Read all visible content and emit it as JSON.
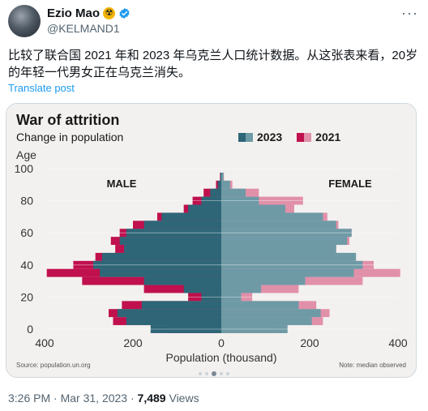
{
  "post": {
    "author_name": "Ezio Mao",
    "status_emoji": "☢",
    "handle": "@KELMAND1",
    "more_label": "···",
    "text": "比较了联合国 2021 年和 2023 年乌克兰人口统计数据。从这张表来看，20岁的年轻一代男女正在乌克兰消失。",
    "translate_label": "Translate post",
    "time": "3:26 PM",
    "sep": "·",
    "date": "Mar 31, 2023",
    "views_count": "7,489",
    "views_label": "Views"
  },
  "media": {
    "title": "War of attrition",
    "subtitle": "Change in population",
    "legend_2023": "2023",
    "legend_2021": "2021",
    "source": "Source: population.un.org",
    "note": "Note: median observed"
  },
  "colors": {
    "c2023": "#2e6677",
    "c2023_female": "#6e9aa6",
    "c2021": "#c0104d",
    "c2021_female": "#e190a9",
    "accent": "#1d9bf0",
    "verified": "#1d9bf0"
  },
  "chart_data": {
    "type": "bar",
    "orientation": "horizontal-pyramid",
    "title": "War of attrition",
    "subtitle": "Change in population",
    "xlabel": "Population (thousand)",
    "ylabel": "Age",
    "left_label": "MALE",
    "right_label": "FEMALE",
    "xlim": [
      -400,
      400
    ],
    "ylim": [
      0,
      100
    ],
    "x_ticks": [
      400,
      200,
      0,
      200,
      400
    ],
    "y_ticks": [
      0,
      20,
      40,
      60,
      80,
      100
    ],
    "ages": [
      0,
      5,
      10,
      15,
      20,
      25,
      30,
      35,
      40,
      45,
      50,
      55,
      60,
      65,
      70,
      75,
      80,
      85,
      90,
      95,
      100
    ],
    "series": [
      {
        "name": "2023",
        "male": [
          -160,
          -215,
          -235,
          -180,
          -45,
          -85,
          -175,
          -275,
          -290,
          -270,
          -220,
          -230,
          -215,
          -175,
          -135,
          -75,
          -45,
          -25,
          -8,
          -2,
          0
        ],
        "female": [
          150,
          205,
          225,
          175,
          45,
          90,
          190,
          300,
          320,
          305,
          260,
          285,
          295,
          260,
          230,
          145,
          85,
          55,
          20,
          5,
          0
        ]
      },
      {
        "name": "2021",
        "male": [
          -120,
          -245,
          -255,
          -225,
          -75,
          -175,
          -315,
          -395,
          -335,
          -285,
          -240,
          -250,
          -230,
          -200,
          -145,
          -85,
          -65,
          -40,
          -12,
          -3,
          0
        ],
        "female": [
          115,
          230,
          245,
          215,
          70,
          175,
          320,
          405,
          345,
          300,
          260,
          290,
          295,
          265,
          240,
          165,
          185,
          85,
          25,
          6,
          0
        ]
      }
    ]
  }
}
